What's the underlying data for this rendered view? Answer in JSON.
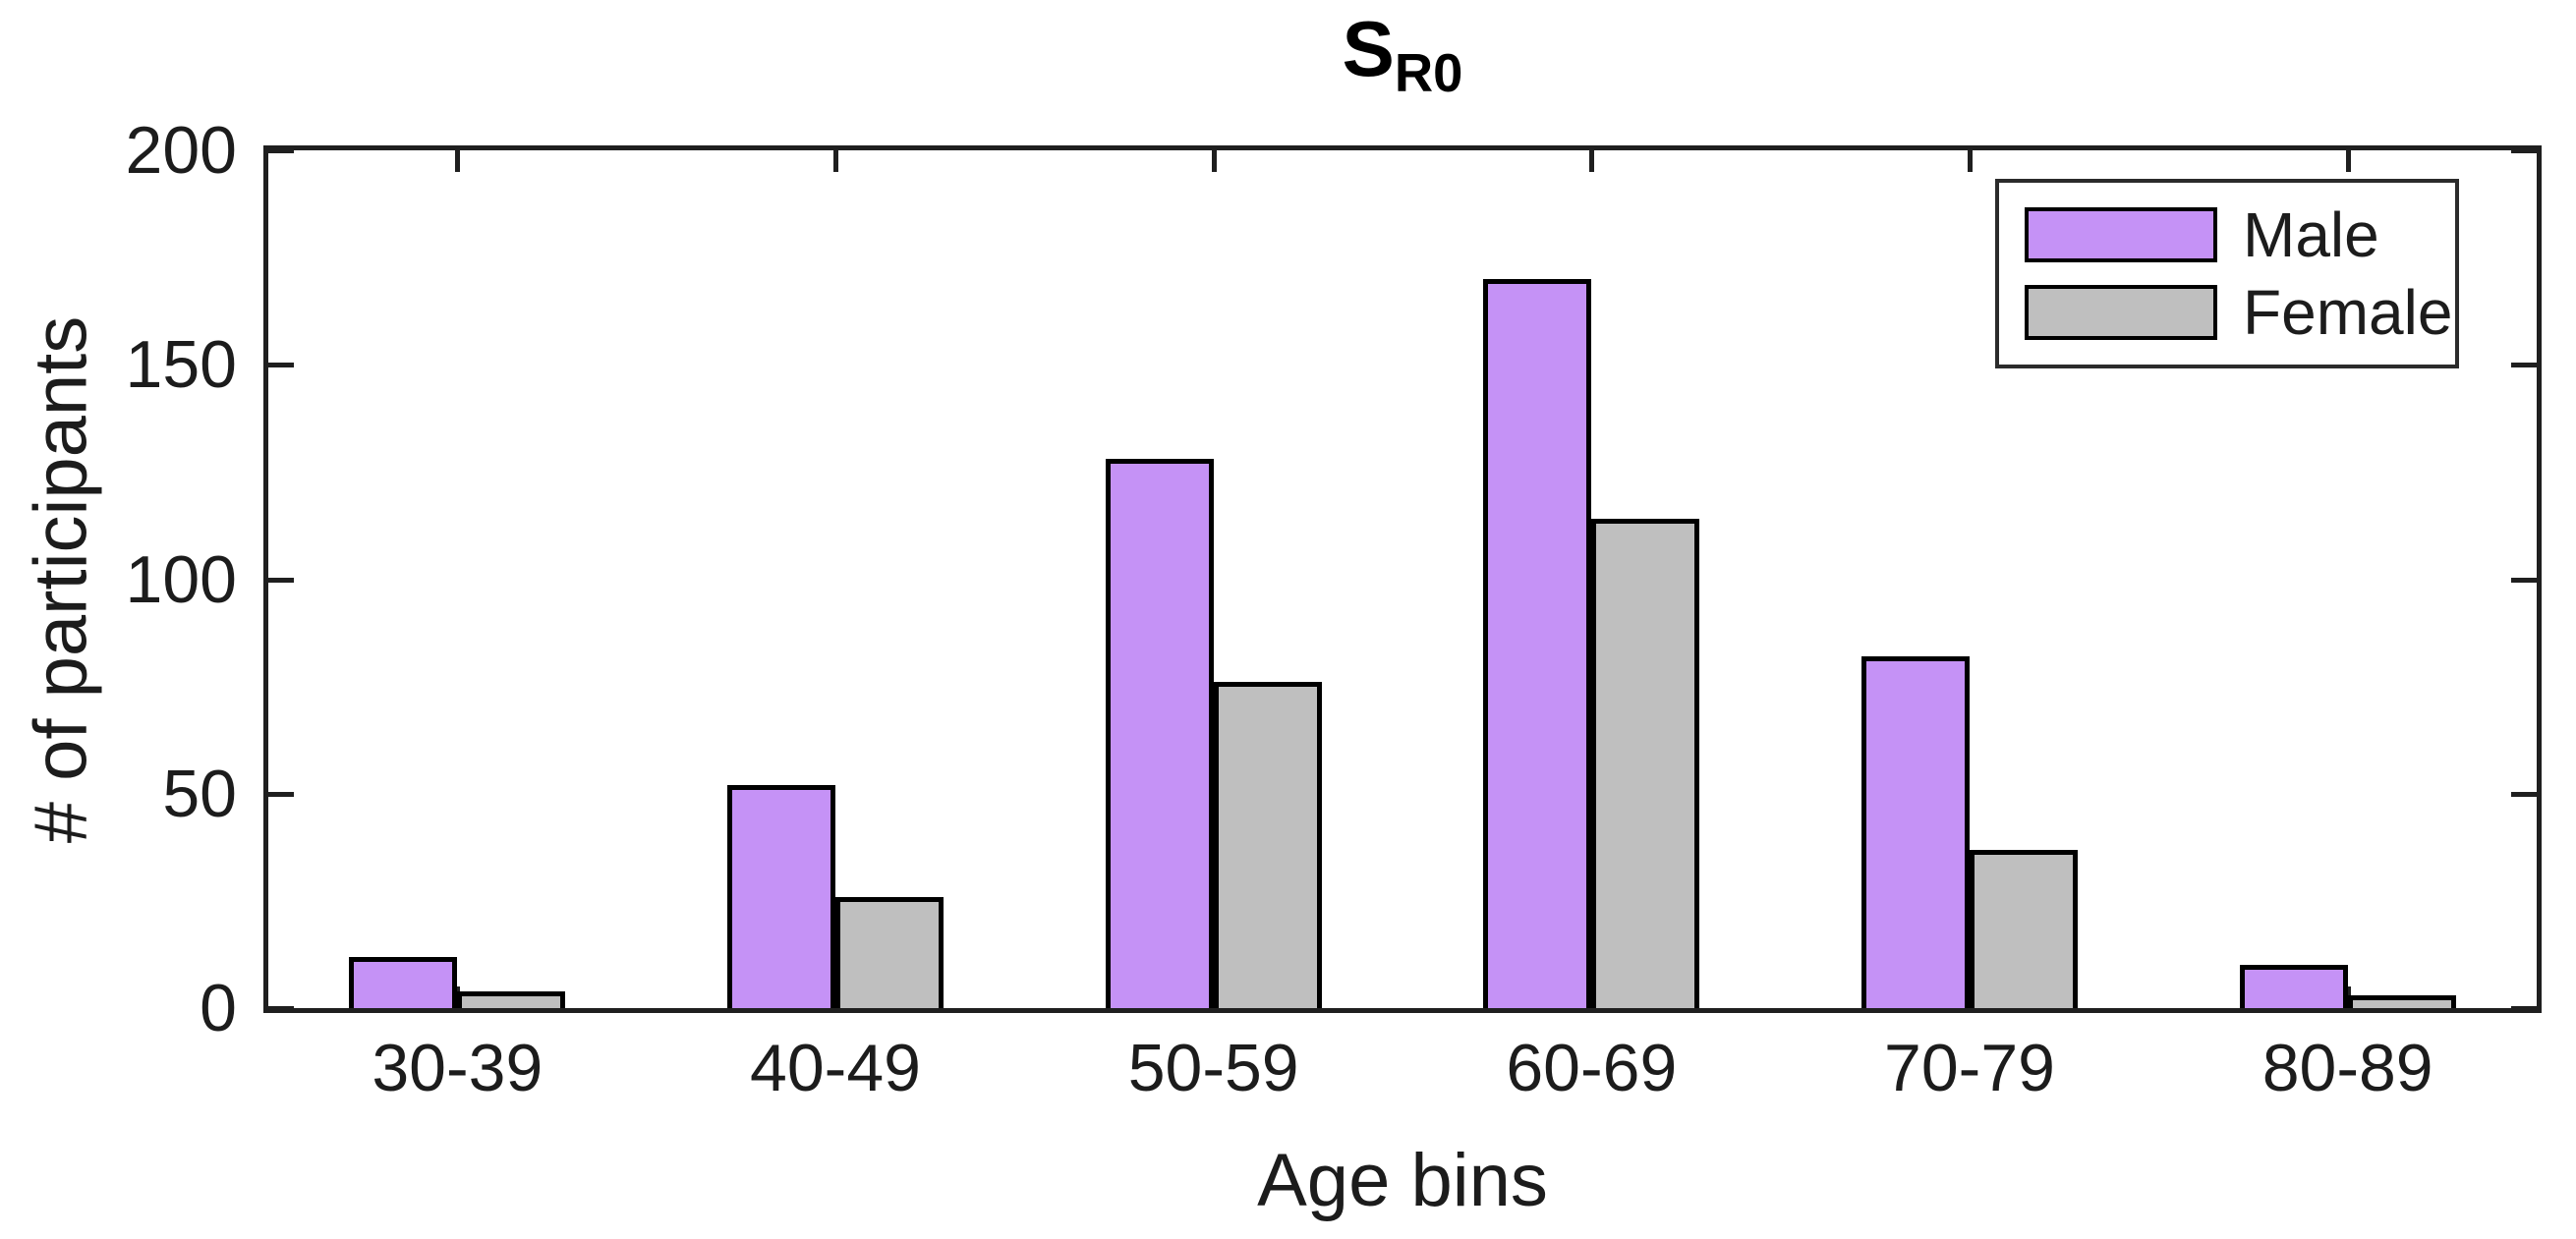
{
  "figure": {
    "title_main": "S",
    "title_sub": "R0",
    "background_color": "#ffffff"
  },
  "chart_data": {
    "type": "bar",
    "title": "S_R0",
    "xlabel": "Age bins",
    "ylabel": "# of participants",
    "categories": [
      "30-39",
      "40-49",
      "50-59",
      "60-69",
      "70-79",
      "80-89"
    ],
    "series": [
      {
        "name": "Male",
        "color": "#c592f6",
        "values": [
          12,
          52,
          128,
          170,
          82,
          10
        ]
      },
      {
        "name": "Female",
        "color": "#bfbfbf",
        "values": [
          4,
          26,
          76,
          114,
          37,
          3
        ]
      }
    ],
    "ylim": [
      0,
      200
    ],
    "yticks": [
      0,
      50,
      100,
      150,
      200
    ],
    "bar_edge_color": "#000000",
    "axis_color": "#1f1f1f",
    "grid": false,
    "legend_position": "top-right",
    "legend_entries": [
      "Male",
      "Female"
    ]
  }
}
